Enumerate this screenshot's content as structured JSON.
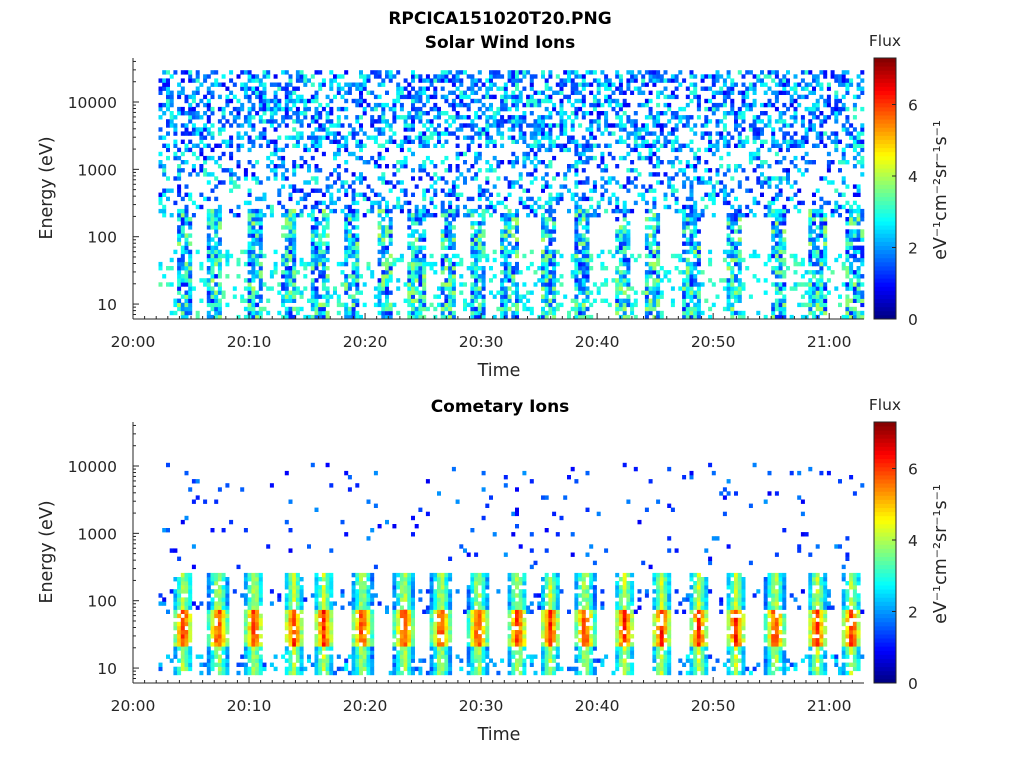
{
  "figure_title": "RPCICA151020T20.PNG",
  "chart_data": [
    {
      "type": "heatmap",
      "title": "Solar Wind Ions",
      "xlabel": "Time",
      "ylabel": "Energy (eV)",
      "x_ticks": [
        "20:00",
        "20:10",
        "20:20",
        "20:30",
        "20:40",
        "20:50",
        "21:00"
      ],
      "x_range_minutes": [
        0,
        63
      ],
      "y_ticks": [
        "10",
        "100",
        "1000",
        "10000"
      ],
      "y_scale": "log",
      "ylim": [
        6,
        45000
      ],
      "colorbar": {
        "title": "Flux",
        "label": "eV⁻¹cm⁻²sr⁻¹s⁻¹",
        "ticks": [
          "0",
          "2",
          "4",
          "6"
        ],
        "range": [
          0,
          7.3
        ],
        "colormap": "jet"
      },
      "data_extent_minutes": [
        2.2,
        62.7
      ],
      "burst_times_minutes": [
        4.3,
        6.9,
        10.4,
        13.3,
        16.0,
        18.7,
        21.5,
        24.3,
        27.0,
        29.6,
        32.3,
        35.6,
        38.6,
        42.0,
        44.6,
        48.0,
        51.7,
        55.5,
        58.9,
        62.0
      ],
      "features": {
        "background_energy_range_ev": [
          200,
          30000
        ],
        "background_flux_range": [
          0.8,
          3.2
        ],
        "burst_energy_range_ev": [
          6,
          250
        ],
        "burst_peak_flux": 4.0
      }
    },
    {
      "type": "heatmap",
      "title": "Cometary Ions",
      "xlabel": "Time",
      "ylabel": "Energy (eV)",
      "x_ticks": [
        "20:00",
        "20:10",
        "20:20",
        "20:30",
        "20:40",
        "20:50",
        "21:00"
      ],
      "x_range_minutes": [
        0,
        63
      ],
      "y_ticks": [
        "10",
        "100",
        "1000",
        "10000"
      ],
      "y_scale": "log",
      "ylim": [
        6,
        45000
      ],
      "colorbar": {
        "title": "Flux",
        "label": "eV⁻¹cm⁻²sr⁻¹s⁻¹",
        "ticks": [
          "0",
          "2",
          "4",
          "6"
        ],
        "range": [
          0,
          7.3
        ],
        "colormap": "jet"
      },
      "data_extent_minutes": [
        2.2,
        62.7
      ],
      "burst_times_minutes": [
        4.2,
        7.2,
        10.3,
        13.7,
        16.3,
        19.6,
        23.2,
        26.4,
        29.6,
        33.0,
        35.8,
        38.8,
        42.2,
        45.4,
        48.6,
        51.8,
        55.2,
        58.8,
        61.8
      ],
      "features": {
        "sparse_energy_range_ev": [
          300,
          11000
        ],
        "burst_energy_range_ev": [
          8,
          260
        ],
        "burst_core_energy_ev": [
          20,
          70
        ],
        "burst_peak_flux": 6.6
      }
    }
  ]
}
